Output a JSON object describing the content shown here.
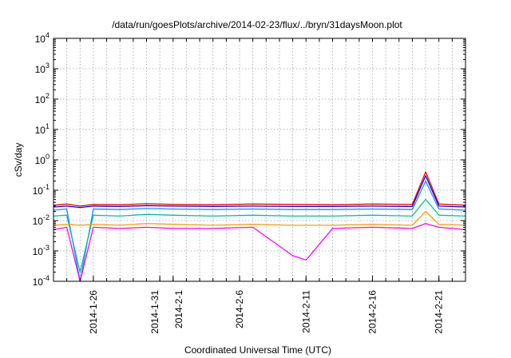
{
  "chart_data": {
    "type": "line",
    "title": "/data/run/goesPlots/archive/2014-02-23/flux/../bryn/31daysMoon.plot",
    "xlabel": "Coordinated Universal Time (UTC)",
    "ylabel": "cSv/day",
    "yscale": "log",
    "ylim": [
      0.0001,
      10000
    ],
    "yticks": [
      {
        "base": "10",
        "exp": "-4"
      },
      {
        "base": "10",
        "exp": "-3"
      },
      {
        "base": "10",
        "exp": "-2"
      },
      {
        "base": "10",
        "exp": "-1"
      },
      {
        "base": "10",
        "exp": "0"
      },
      {
        "base": "10",
        "exp": "1"
      },
      {
        "base": "10",
        "exp": "2"
      },
      {
        "base": "10",
        "exp": "3"
      },
      {
        "base": "10",
        "exp": "4"
      }
    ],
    "xlim": [
      "2014-01-23",
      "2014-02-23"
    ],
    "xtick_labels": [
      {
        "date": "2014-01-26",
        "label": "2014-1-26"
      },
      {
        "date": "2014-01-31",
        "label": "2014-1-31"
      },
      {
        "date": "2014-02-01",
        "label": "2014-2-1"
      },
      {
        "date": "2014-02-06",
        "label": "2014-2-6"
      },
      {
        "date": "2014-02-11",
        "label": "2014-2-11"
      },
      {
        "date": "2014-02-16",
        "label": "2014-2-16"
      },
      {
        "date": "2014-02-21",
        "label": "2014-2-21"
      }
    ],
    "grid": true,
    "legend": "none",
    "series": [
      {
        "color": "#ff0000",
        "values": [
          [
            "2014-01-23",
            0.032
          ],
          [
            "2014-01-24",
            0.035
          ],
          [
            "2014-01-25",
            0.03
          ],
          [
            "2014-01-26",
            0.034
          ],
          [
            "2014-01-28",
            0.033
          ],
          [
            "2014-01-30",
            0.036
          ],
          [
            "2014-02-01",
            0.034
          ],
          [
            "2014-02-04",
            0.033
          ],
          [
            "2014-02-07",
            0.035
          ],
          [
            "2014-02-10",
            0.034
          ],
          [
            "2014-02-13",
            0.033
          ],
          [
            "2014-02-16",
            0.035
          ],
          [
            "2014-02-19",
            0.034
          ],
          [
            "2014-02-20",
            0.4
          ],
          [
            "2014-02-21",
            0.035
          ],
          [
            "2014-02-23",
            0.032
          ]
        ]
      },
      {
        "color": "#0000ff",
        "values": [
          [
            "2014-01-23",
            0.028
          ],
          [
            "2014-01-24",
            0.03
          ],
          [
            "2014-01-25",
            0.027
          ],
          [
            "2014-01-26",
            0.03
          ],
          [
            "2014-01-28",
            0.029
          ],
          [
            "2014-01-30",
            0.031
          ],
          [
            "2014-02-01",
            0.03
          ],
          [
            "2014-02-04",
            0.029
          ],
          [
            "2014-02-07",
            0.03
          ],
          [
            "2014-02-10",
            0.029
          ],
          [
            "2014-02-13",
            0.029
          ],
          [
            "2014-02-16",
            0.03
          ],
          [
            "2014-02-19",
            0.029
          ],
          [
            "2014-02-20",
            0.3
          ],
          [
            "2014-02-21",
            0.03
          ],
          [
            "2014-02-23",
            0.028
          ]
        ]
      },
      {
        "color": "#1e90ff",
        "values": [
          [
            "2014-01-23",
            0.022
          ],
          [
            "2014-01-24",
            0.024
          ],
          [
            "2014-01-25",
            0.0001
          ],
          [
            "2014-01-26",
            0.024
          ],
          [
            "2014-01-28",
            0.023
          ],
          [
            "2014-01-30",
            0.025
          ],
          [
            "2014-02-01",
            0.024
          ],
          [
            "2014-02-04",
            0.023
          ],
          [
            "2014-02-07",
            0.024
          ],
          [
            "2014-02-10",
            0.023
          ],
          [
            "2014-02-13",
            0.023
          ],
          [
            "2014-02-16",
            0.024
          ],
          [
            "2014-02-19",
            0.023
          ],
          [
            "2014-02-20",
            0.2
          ],
          [
            "2014-02-21",
            0.024
          ],
          [
            "2014-02-23",
            0.022
          ]
        ]
      },
      {
        "color": "#00c0a0",
        "values": [
          [
            "2014-01-23",
            0.014
          ],
          [
            "2014-01-24",
            0.015
          ],
          [
            "2014-01-25",
            0.0002
          ],
          [
            "2014-01-26",
            0.015
          ],
          [
            "2014-01-28",
            0.014
          ],
          [
            "2014-01-30",
            0.016
          ],
          [
            "2014-02-01",
            0.015
          ],
          [
            "2014-02-04",
            0.014
          ],
          [
            "2014-02-07",
            0.015
          ],
          [
            "2014-02-10",
            0.014
          ],
          [
            "2014-02-13",
            0.014
          ],
          [
            "2014-02-16",
            0.015
          ],
          [
            "2014-02-19",
            0.014
          ],
          [
            "2014-02-20",
            0.05
          ],
          [
            "2014-02-21",
            0.015
          ],
          [
            "2014-02-23",
            0.014
          ]
        ]
      },
      {
        "color": "#ffa000",
        "values": [
          [
            "2014-01-23",
            0.007
          ],
          [
            "2014-01-24",
            0.0075
          ],
          [
            "2014-01-25",
            0.007
          ],
          [
            "2014-01-26",
            0.0075
          ],
          [
            "2014-01-28",
            0.007
          ],
          [
            "2014-01-30",
            0.008
          ],
          [
            "2014-02-01",
            0.0075
          ],
          [
            "2014-02-04",
            0.007
          ],
          [
            "2014-02-07",
            0.0075
          ],
          [
            "2014-02-10",
            0.007
          ],
          [
            "2014-02-13",
            0.007
          ],
          [
            "2014-02-16",
            0.0075
          ],
          [
            "2014-02-19",
            0.007
          ],
          [
            "2014-02-20",
            0.02
          ],
          [
            "2014-02-21",
            0.0075
          ],
          [
            "2014-02-23",
            0.007
          ]
        ]
      },
      {
        "color": "#ff00ff",
        "values": [
          [
            "2014-01-23",
            0.005
          ],
          [
            "2014-01-24",
            0.006
          ],
          [
            "2014-01-25",
            0.0001
          ],
          [
            "2014-01-26",
            0.006
          ],
          [
            "2014-01-28",
            0.0055
          ],
          [
            "2014-01-30",
            0.006
          ],
          [
            "2014-02-01",
            0.0055
          ],
          [
            "2014-02-04",
            0.0055
          ],
          [
            "2014-02-07",
            0.006
          ],
          [
            "2014-02-10",
            0.0007
          ],
          [
            "2014-02-11",
            0.0005
          ],
          [
            "2014-02-13",
            0.0055
          ],
          [
            "2014-02-16",
            0.006
          ],
          [
            "2014-02-19",
            0.0055
          ],
          [
            "2014-02-20",
            0.008
          ],
          [
            "2014-02-21",
            0.006
          ],
          [
            "2014-02-23",
            0.005
          ]
        ]
      }
    ]
  }
}
